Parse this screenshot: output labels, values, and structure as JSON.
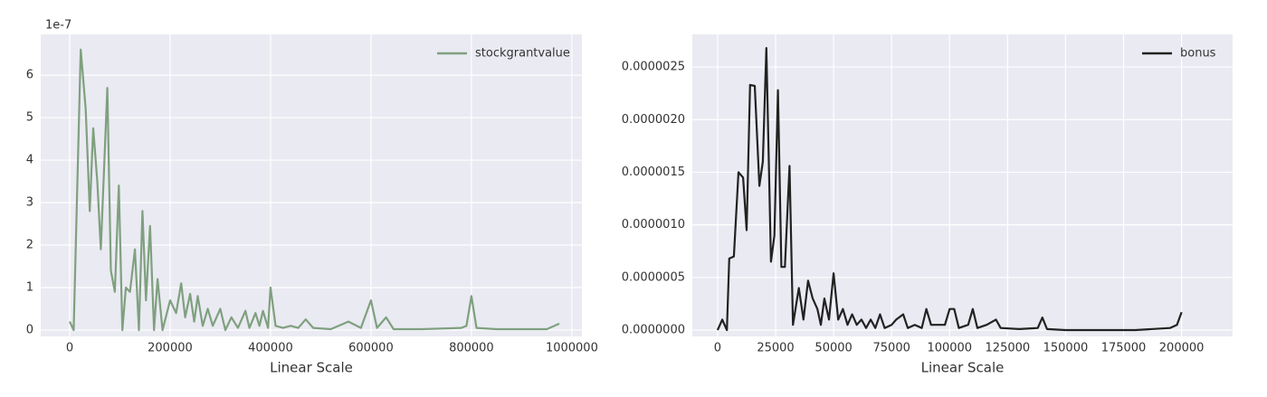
{
  "chart_data": [
    {
      "type": "line",
      "xlabel": "Linear Scale",
      "y_offset_label": "1e-7",
      "x": [
        0,
        8000,
        22000,
        32000,
        40000,
        47000,
        55000,
        62000,
        75000,
        82000,
        90000,
        98000,
        105000,
        112000,
        120000,
        130000,
        138000,
        145000,
        152000,
        160000,
        168000,
        175000,
        185000,
        200000,
        212000,
        222000,
        230000,
        240000,
        248000,
        255000,
        265000,
        275000,
        285000,
        300000,
        310000,
        322000,
        335000,
        350000,
        358000,
        370000,
        378000,
        385000,
        395000,
        400000,
        410000,
        425000,
        440000,
        455000,
        470000,
        485000,
        520000,
        555000,
        580000,
        600000,
        612000,
        630000,
        645000,
        700000,
        780000,
        790000,
        800000,
        810000,
        850000,
        950000,
        975000
      ],
      "series": [
        {
          "name": "stockgrantvalue",
          "color": "#7fa07f",
          "values": [
            0.2,
            0,
            6.6,
            5.2,
            2.8,
            4.75,
            3.5,
            1.9,
            5.7,
            1.4,
            0.9,
            3.4,
            0,
            1.0,
            0.9,
            1.9,
            0,
            2.8,
            0.7,
            2.45,
            0,
            1.2,
            0,
            0.7,
            0.4,
            1.1,
            0.3,
            0.85,
            0.2,
            0.8,
            0.1,
            0.5,
            0.1,
            0.5,
            0,
            0.3,
            0.05,
            0.45,
            0.05,
            0.4,
            0.1,
            0.45,
            0.05,
            1.0,
            0.1,
            0.05,
            0.1,
            0.05,
            0.25,
            0.05,
            0.02,
            0.2,
            0.05,
            0.7,
            0.05,
            0.3,
            0.02,
            0.02,
            0.05,
            0.1,
            0.8,
            0.05,
            0.02,
            0.02,
            0.15
          ]
        }
      ],
      "xlim": [
        -57600,
        1020000
      ],
      "xticks": [
        0,
        200000,
        400000,
        600000,
        800000,
        1000000
      ],
      "ylim": [
        -0.15,
        6.96
      ],
      "yticks": [
        0,
        1,
        2,
        3,
        4,
        5,
        6
      ],
      "grid": true,
      "legend": "upper right"
    },
    {
      "type": "line",
      "xlabel": "Linear Scale",
      "x": [
        0,
        2000,
        4000,
        5000,
        7000,
        9000,
        11000,
        12500,
        14000,
        16000,
        18000,
        19500,
        21000,
        23000,
        24500,
        26000,
        27500,
        29000,
        31000,
        32500,
        35000,
        37000,
        39000,
        41000,
        43000,
        44500,
        46000,
        48000,
        50000,
        52000,
        54000,
        56000,
        58000,
        60000,
        62000,
        64000,
        66000,
        68000,
        70000,
        72000,
        75000,
        77000,
        80000,
        82000,
        85000,
        88000,
        90000,
        92000,
        95000,
        98000,
        100000,
        102000,
        104000,
        108000,
        110000,
        112000,
        116000,
        120000,
        122000,
        130000,
        138000,
        140000,
        142000,
        150000,
        180000,
        195000,
        198000,
        200000
      ],
      "series": [
        {
          "name": "bonus",
          "color": "#222222",
          "values": [
            0,
            1e-07,
            0,
            6.8e-07,
            7e-07,
            1.5e-06,
            1.45e-06,
            9.5e-07,
            2.33e-06,
            2.32e-06,
            1.37e-06,
            1.6e-06,
            2.68e-06,
            6.5e-07,
            9e-07,
            2.28e-06,
            6e-07,
            6e-07,
            1.56e-06,
            5e-08,
            4e-07,
            1e-07,
            4.7e-07,
            3e-07,
            2e-07,
            5e-08,
            3e-07,
            1e-07,
            5.4e-07,
            1e-07,
            2e-07,
            5e-08,
            1.5e-07,
            5e-08,
            1e-07,
            2e-08,
            1e-07,
            2e-08,
            1.5e-07,
            2e-08,
            5e-08,
            1e-07,
            1.5e-07,
            2e-08,
            5e-08,
            2e-08,
            2e-07,
            5e-08,
            5e-08,
            5e-08,
            2e-07,
            2e-07,
            2e-08,
            5e-08,
            2e-07,
            2e-08,
            5e-08,
            1e-07,
            2e-08,
            1e-08,
            2e-08,
            1.2e-07,
            1e-08,
            0,
            0,
            2e-08,
            5e-08,
            1.7e-07
          ]
        }
      ],
      "xlim": [
        -10900,
        222000
      ],
      "xticks": [
        0,
        25000,
        50000,
        75000,
        100000,
        125000,
        150000,
        175000,
        200000
      ],
      "ylim": [
        -6e-08,
        2.81e-06
      ],
      "yticks": [
        {
          "value": 0,
          "label": "0.0000000"
        },
        {
          "value": 5e-07,
          "label": "0.0000005"
        },
        {
          "value": 1e-06,
          "label": "0.0000010"
        },
        {
          "value": 1.5e-06,
          "label": "0.0000015"
        },
        {
          "value": 2e-06,
          "label": "0.0000020"
        },
        {
          "value": 2.5e-06,
          "label": "0.0000025"
        }
      ],
      "grid": true,
      "legend": "upper right"
    }
  ]
}
